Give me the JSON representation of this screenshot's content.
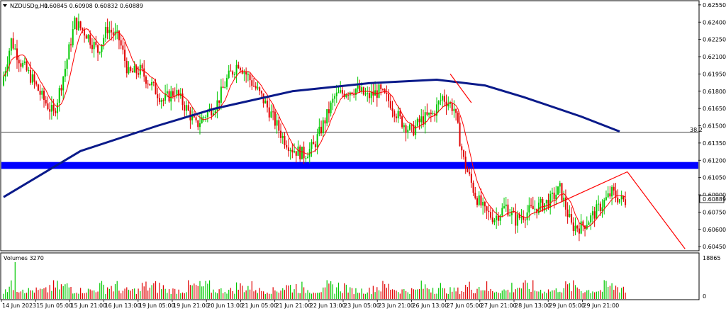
{
  "chart_data": {
    "type": "candlestick",
    "symbol_header": "NZDUSDg,H1",
    "ohlc_header": "0.60845 0.60908 0.60832 0.60889",
    "price_axis": {
      "min": 0.6042,
      "max": 0.6258,
      "ticks": [
        "0.62550",
        "0.62400",
        "0.62250",
        "0.62100",
        "0.61950",
        "0.61800",
        "0.61650",
        "0.61500",
        "0.61350",
        "0.61200",
        "0.61050",
        "0.60900",
        "0.60750",
        "0.60600",
        "0.60450"
      ]
    },
    "current_price": "0.60889",
    "fib_level_label": "38.2",
    "fib_level_price": 0.61443,
    "support_zone": [
      0.61125,
      0.61185
    ],
    "time_labels": [
      "14 Jun 2023",
      "15 Jun 05:00",
      "15 Jun 21:00",
      "16 Jun 13:00",
      "19 Jun 05:00",
      "19 Jun 21:00",
      "20 Jun 13:00",
      "21 Jun 05:00",
      "21 Jun 21:00",
      "22 Jun 13:00",
      "23 Jun 05:00",
      "23 Jun 21:00",
      "26 Jun 13:00",
      "27 Jun 05:00",
      "27 Jun 21:00",
      "28 Jun 13:00",
      "29 Jun 05:00",
      "29 Jun 21:00"
    ],
    "volume_panel": {
      "label": "Volumes 3270",
      "max_label": "18865",
      "zero_label": "0",
      "max": 18865
    },
    "price_path": [
      [
        0,
        0.6185
      ],
      [
        5,
        0.6224
      ],
      [
        10,
        0.6205
      ],
      [
        16,
        0.619
      ],
      [
        21,
        0.6175
      ],
      [
        27,
        0.616
      ],
      [
        33,
        0.62
      ],
      [
        38,
        0.624
      ],
      [
        44,
        0.623
      ],
      [
        50,
        0.6215
      ],
      [
        55,
        0.6235
      ],
      [
        61,
        0.6225
      ],
      [
        66,
        0.6195
      ],
      [
        72,
        0.6198
      ],
      [
        78,
        0.6185
      ],
      [
        84,
        0.6172
      ],
      [
        90,
        0.618
      ],
      [
        96,
        0.6165
      ],
      [
        101,
        0.615
      ],
      [
        106,
        0.616
      ],
      [
        112,
        0.617
      ],
      [
        117,
        0.619
      ],
      [
        123,
        0.6205
      ],
      [
        129,
        0.619
      ],
      [
        135,
        0.6175
      ],
      [
        140,
        0.616
      ],
      [
        146,
        0.614
      ],
      [
        151,
        0.613
      ],
      [
        157,
        0.6125
      ],
      [
        162,
        0.6132
      ],
      [
        168,
        0.6155
      ],
      [
        173,
        0.6175
      ],
      [
        179,
        0.618
      ],
      [
        184,
        0.6182
      ],
      [
        190,
        0.6175
      ],
      [
        196,
        0.618
      ],
      [
        202,
        0.617
      ],
      [
        207,
        0.6155
      ],
      [
        213,
        0.6145
      ],
      [
        218,
        0.6155
      ],
      [
        224,
        0.616
      ],
      [
        229,
        0.6175
      ],
      [
        235,
        0.6165
      ],
      [
        240,
        0.612
      ],
      [
        246,
        0.609
      ],
      [
        251,
        0.6075
      ],
      [
        256,
        0.607
      ],
      [
        262,
        0.608
      ],
      [
        267,
        0.6068
      ],
      [
        273,
        0.6075
      ],
      [
        279,
        0.608
      ],
      [
        285,
        0.6085
      ],
      [
        290,
        0.6095
      ],
      [
        296,
        0.6063
      ],
      [
        301,
        0.6062
      ],
      [
        306,
        0.607
      ],
      [
        311,
        0.608
      ],
      [
        317,
        0.6092
      ],
      [
        322,
        0.6085
      ]
    ],
    "annotations": [
      {
        "type": "trend-line",
        "color": "#ff0000",
        "from": [
          278,
          0.6075
        ],
        "to": [
          324,
          0.611
        ]
      },
      {
        "type": "projection-line",
        "color": "#ff0000",
        "from": [
          324,
          0.611
        ],
        "to": [
          354,
          0.6043
        ]
      },
      {
        "type": "down-trend-line",
        "color": "#ff0000",
        "from": [
          232,
          0.6195
        ],
        "to": [
          243,
          0.617
        ]
      }
    ],
    "colors": {
      "bull": "#00c800",
      "bear": "#e00000",
      "ma_long": "#0a1a8a",
      "ma_short": "#ff0000",
      "zone": "#0000ff",
      "grid": "#000000"
    }
  }
}
